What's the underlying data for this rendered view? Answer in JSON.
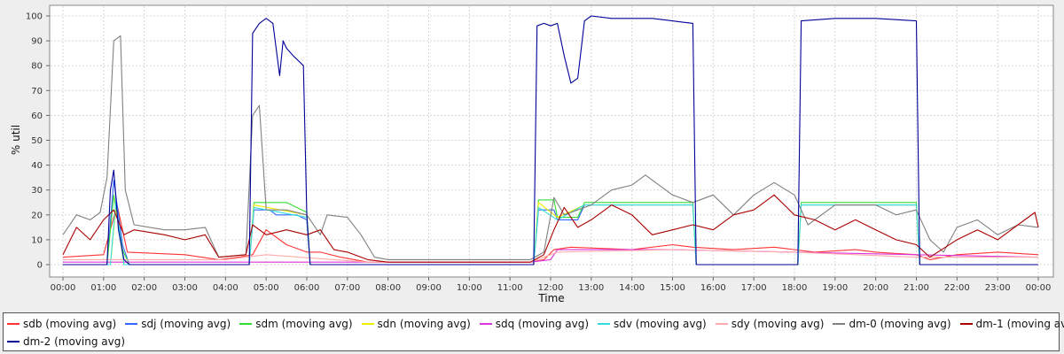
{
  "chart_data": {
    "type": "line",
    "title": "",
    "xlabel": "Time",
    "ylabel": "% util",
    "ylim": [
      0,
      100
    ],
    "xlim": [
      "00:00",
      "24:00"
    ],
    "x_tick_labels": [
      "00:00",
      "01:00",
      "02:00",
      "03:00",
      "04:00",
      "05:00",
      "06:00",
      "07:00",
      "08:00",
      "09:00",
      "10:00",
      "11:00",
      "12:00",
      "13:00",
      "14:00",
      "15:00",
      "16:00",
      "17:00",
      "18:00",
      "19:00",
      "20:00",
      "21:00",
      "22:00",
      "23:00",
      "00:00"
    ],
    "y_tick_labels": [
      "0",
      "10",
      "20",
      "30",
      "40",
      "50",
      "60",
      "70",
      "80",
      "90",
      "100"
    ],
    "y_ticks": [
      0,
      10,
      20,
      30,
      40,
      50,
      60,
      70,
      80,
      90,
      100
    ],
    "grid": true,
    "legend_position": "bottom",
    "series": [
      {
        "name": "sdb (moving avg)",
        "color": "#ff3333",
        "points": [
          [
            "00:00",
            3
          ],
          [
            "01:00",
            4
          ],
          [
            "01:20",
            24
          ],
          [
            "01:35",
            5
          ],
          [
            "03:00",
            4
          ],
          [
            "03:50",
            2
          ],
          [
            "04:20",
            3
          ],
          [
            "04:40",
            4
          ],
          [
            "05:00",
            14
          ],
          [
            "05:30",
            8
          ],
          [
            "06:00",
            5
          ],
          [
            "06:20",
            5
          ],
          [
            "06:50",
            3
          ],
          [
            "07:30",
            1
          ],
          [
            "11:30",
            1
          ],
          [
            "11:50",
            2
          ],
          [
            "12:05",
            6
          ],
          [
            "12:30",
            7
          ],
          [
            "14:00",
            6
          ],
          [
            "15:00",
            8
          ],
          [
            "15:30",
            7
          ],
          [
            "16:30",
            6
          ],
          [
            "17:30",
            7
          ],
          [
            "18:30",
            5
          ],
          [
            "19:30",
            6
          ],
          [
            "20:00",
            5
          ],
          [
            "21:00",
            4
          ],
          [
            "21:20",
            2
          ],
          [
            "22:00",
            4
          ],
          [
            "23:00",
            5
          ],
          [
            "24:00",
            4
          ]
        ]
      },
      {
        "name": "sdj (moving avg)",
        "color": "#3366ff",
        "points": [
          [
            "00:00",
            0
          ],
          [
            "01:05",
            0
          ],
          [
            "01:15",
            34
          ],
          [
            "01:28",
            8
          ],
          [
            "01:38",
            0
          ],
          [
            "04:35",
            0
          ],
          [
            "04:42",
            22
          ],
          [
            "05:05",
            22
          ],
          [
            "05:15",
            20
          ],
          [
            "05:45",
            20
          ],
          [
            "06:00",
            18
          ],
          [
            "06:05",
            0
          ],
          [
            "11:35",
            0
          ],
          [
            "11:42",
            22
          ],
          [
            "12:05",
            22
          ],
          [
            "12:10",
            18
          ],
          [
            "12:40",
            18
          ],
          [
            "12:50",
            24
          ],
          [
            "14:00",
            24
          ],
          [
            "15:00",
            24
          ],
          [
            "15:30",
            24
          ],
          [
            "15:35",
            0
          ],
          [
            "18:05",
            0
          ],
          [
            "18:10",
            24
          ],
          [
            "21:00",
            24
          ],
          [
            "21:05",
            0
          ],
          [
            "24:00",
            0
          ]
        ]
      },
      {
        "name": "sdm (moving avg)",
        "color": "#33dd33",
        "points": [
          [
            "00:00",
            0
          ],
          [
            "01:05",
            0
          ],
          [
            "01:15",
            28
          ],
          [
            "01:28",
            6
          ],
          [
            "01:38",
            0
          ],
          [
            "04:35",
            0
          ],
          [
            "04:42",
            25
          ],
          [
            "05:30",
            25
          ],
          [
            "06:00",
            21
          ],
          [
            "06:05",
            0
          ],
          [
            "11:35",
            0
          ],
          [
            "11:42",
            26
          ],
          [
            "12:05",
            26
          ],
          [
            "12:10",
            19
          ],
          [
            "12:40",
            19
          ],
          [
            "12:50",
            25
          ],
          [
            "15:30",
            25
          ],
          [
            "15:35",
            0
          ],
          [
            "18:05",
            0
          ],
          [
            "18:10",
            25
          ],
          [
            "21:00",
            25
          ],
          [
            "21:05",
            0
          ],
          [
            "24:00",
            0
          ]
        ]
      },
      {
        "name": "sdn (moving avg)",
        "color": "#eeee00",
        "points": [
          [
            "00:00",
            0
          ],
          [
            "01:10",
            0
          ],
          [
            "01:18",
            23
          ],
          [
            "01:30",
            0
          ],
          [
            "04:35",
            0
          ],
          [
            "04:42",
            24
          ],
          [
            "06:00",
            20
          ],
          [
            "06:05",
            0
          ],
          [
            "11:35",
            0
          ],
          [
            "11:42",
            25
          ],
          [
            "12:10",
            19
          ],
          [
            "12:50",
            24
          ],
          [
            "15:30",
            24
          ],
          [
            "15:35",
            0
          ],
          [
            "18:05",
            0
          ],
          [
            "18:10",
            24
          ],
          [
            "21:00",
            24
          ],
          [
            "21:05",
            0
          ],
          [
            "24:00",
            0
          ]
        ]
      },
      {
        "name": "sdq (moving avg)",
        "color": "#dd33dd",
        "points": [
          [
            "00:00",
            1
          ],
          [
            "03:50",
            1
          ],
          [
            "04:30",
            1
          ],
          [
            "07:30",
            1
          ],
          [
            "08:00",
            1
          ],
          [
            "11:30",
            1
          ],
          [
            "12:00",
            2
          ],
          [
            "12:10",
            6
          ],
          [
            "15:00",
            6
          ],
          [
            "18:00",
            5
          ],
          [
            "21:00",
            4
          ],
          [
            "24:00",
            3
          ]
        ]
      },
      {
        "name": "sdv (moving avg)",
        "color": "#33dddd",
        "points": [
          [
            "00:00",
            0
          ],
          [
            "01:10",
            0
          ],
          [
            "01:18",
            25
          ],
          [
            "01:30",
            0
          ],
          [
            "04:35",
            0
          ],
          [
            "04:42",
            23
          ],
          [
            "06:00",
            19
          ],
          [
            "06:05",
            0
          ],
          [
            "11:35",
            0
          ],
          [
            "11:42",
            23
          ],
          [
            "12:10",
            18
          ],
          [
            "12:50",
            24
          ],
          [
            "15:30",
            24
          ],
          [
            "15:35",
            0
          ],
          [
            "18:05",
            0
          ],
          [
            "18:10",
            24
          ],
          [
            "21:00",
            24
          ],
          [
            "21:05",
            0
          ],
          [
            "24:00",
            0
          ]
        ]
      },
      {
        "name": "sdy (moving avg)",
        "color": "#ffaaaa",
        "points": [
          [
            "00:00",
            2
          ],
          [
            "04:00",
            2
          ],
          [
            "05:00",
            4
          ],
          [
            "07:30",
            1
          ],
          [
            "11:30",
            1
          ],
          [
            "12:10",
            5
          ],
          [
            "15:00",
            6
          ],
          [
            "18:00",
            5
          ],
          [
            "21:00",
            3
          ],
          [
            "24:00",
            3
          ]
        ]
      },
      {
        "name": "dm-0 (moving avg)",
        "color": "#808080",
        "points": [
          [
            "00:00",
            12
          ],
          [
            "00:20",
            20
          ],
          [
            "00:40",
            18
          ],
          [
            "00:55",
            21
          ],
          [
            "01:05",
            35
          ],
          [
            "01:15",
            90
          ],
          [
            "01:25",
            92
          ],
          [
            "01:32",
            30
          ],
          [
            "01:45",
            16
          ],
          [
            "02:30",
            14
          ],
          [
            "03:00",
            14
          ],
          [
            "03:30",
            15
          ],
          [
            "03:50",
            3
          ],
          [
            "04:30",
            4
          ],
          [
            "04:40",
            60
          ],
          [
            "04:50",
            64
          ],
          [
            "05:00",
            22
          ],
          [
            "05:30",
            22
          ],
          [
            "06:00",
            20
          ],
          [
            "06:20",
            12
          ],
          [
            "06:30",
            20
          ],
          [
            "07:00",
            19
          ],
          [
            "07:20",
            12
          ],
          [
            "07:40",
            3
          ],
          [
            "08:00",
            2
          ],
          [
            "11:30",
            2
          ],
          [
            "11:50",
            5
          ],
          [
            "12:05",
            27
          ],
          [
            "12:20",
            20
          ],
          [
            "13:00",
            24
          ],
          [
            "13:30",
            30
          ],
          [
            "14:00",
            32
          ],
          [
            "14:20",
            36
          ],
          [
            "15:00",
            28
          ],
          [
            "15:30",
            25
          ],
          [
            "16:00",
            28
          ],
          [
            "16:30",
            20
          ],
          [
            "17:00",
            28
          ],
          [
            "17:30",
            33
          ],
          [
            "18:00",
            28
          ],
          [
            "18:20",
            16
          ],
          [
            "19:00",
            24
          ],
          [
            "20:00",
            24
          ],
          [
            "20:30",
            20
          ],
          [
            "21:00",
            22
          ],
          [
            "21:20",
            10
          ],
          [
            "21:40",
            5
          ],
          [
            "22:00",
            15
          ],
          [
            "22:30",
            18
          ],
          [
            "23:00",
            12
          ],
          [
            "23:30",
            16
          ],
          [
            "24:00",
            15
          ]
        ]
      },
      {
        "name": "dm-1 (moving avg)",
        "color": "#aa0000",
        "points": [
          [
            "00:00",
            4
          ],
          [
            "00:20",
            15
          ],
          [
            "00:40",
            10
          ],
          [
            "01:00",
            18
          ],
          [
            "01:15",
            22
          ],
          [
            "01:30",
            12
          ],
          [
            "01:45",
            14
          ],
          [
            "02:30",
            12
          ],
          [
            "03:00",
            10
          ],
          [
            "03:30",
            12
          ],
          [
            "03:50",
            3
          ],
          [
            "04:30",
            4
          ],
          [
            "04:40",
            16
          ],
          [
            "05:00",
            12
          ],
          [
            "05:30",
            14
          ],
          [
            "06:00",
            12
          ],
          [
            "06:20",
            14
          ],
          [
            "06:40",
            6
          ],
          [
            "07:00",
            5
          ],
          [
            "07:30",
            2
          ],
          [
            "08:00",
            1
          ],
          [
            "11:30",
            1
          ],
          [
            "11:50",
            4
          ],
          [
            "12:05",
            14
          ],
          [
            "12:20",
            23
          ],
          [
            "12:40",
            15
          ],
          [
            "13:00",
            18
          ],
          [
            "13:30",
            24
          ],
          [
            "14:00",
            20
          ],
          [
            "14:30",
            12
          ],
          [
            "15:00",
            14
          ],
          [
            "15:30",
            16
          ],
          [
            "16:00",
            14
          ],
          [
            "16:30",
            20
          ],
          [
            "17:00",
            22
          ],
          [
            "17:30",
            28
          ],
          [
            "18:00",
            20
          ],
          [
            "18:30",
            18
          ],
          [
            "19:00",
            14
          ],
          [
            "19:30",
            18
          ],
          [
            "20:00",
            14
          ],
          [
            "20:30",
            10
          ],
          [
            "21:00",
            8
          ],
          [
            "21:20",
            3
          ],
          [
            "22:00",
            10
          ],
          [
            "22:30",
            14
          ],
          [
            "23:00",
            10
          ],
          [
            "23:30",
            16
          ],
          [
            "23:55",
            21
          ],
          [
            "24:00",
            15
          ]
        ]
      },
      {
        "name": "dm-2 (moving avg)",
        "color": "#000099",
        "points": [
          [
            "00:00",
            0
          ],
          [
            "01:05",
            0
          ],
          [
            "01:10",
            30
          ],
          [
            "01:15",
            38
          ],
          [
            "01:22",
            14
          ],
          [
            "01:30",
            2
          ],
          [
            "01:38",
            0
          ],
          [
            "04:35",
            0
          ],
          [
            "04:40",
            93
          ],
          [
            "04:50",
            97
          ],
          [
            "05:00",
            99
          ],
          [
            "05:10",
            97
          ],
          [
            "05:20",
            76
          ],
          [
            "05:25",
            90
          ],
          [
            "05:30",
            87
          ],
          [
            "05:40",
            84
          ],
          [
            "05:55",
            80
          ],
          [
            "06:00",
            20
          ],
          [
            "06:05",
            0
          ],
          [
            "11:35",
            0
          ],
          [
            "11:40",
            96
          ],
          [
            "11:50",
            97
          ],
          [
            "12:00",
            96
          ],
          [
            "12:10",
            97
          ],
          [
            "12:20",
            84
          ],
          [
            "12:30",
            73
          ],
          [
            "12:40",
            75
          ],
          [
            "12:50",
            98
          ],
          [
            "13:00",
            100
          ],
          [
            "13:30",
            99
          ],
          [
            "14:30",
            99
          ],
          [
            "15:00",
            98
          ],
          [
            "15:30",
            97
          ],
          [
            "15:35",
            0
          ],
          [
            "18:05",
            0
          ],
          [
            "18:10",
            98
          ],
          [
            "19:00",
            99
          ],
          [
            "20:00",
            99
          ],
          [
            "21:00",
            98
          ],
          [
            "21:05",
            0
          ],
          [
            "24:00",
            0
          ]
        ]
      }
    ]
  }
}
